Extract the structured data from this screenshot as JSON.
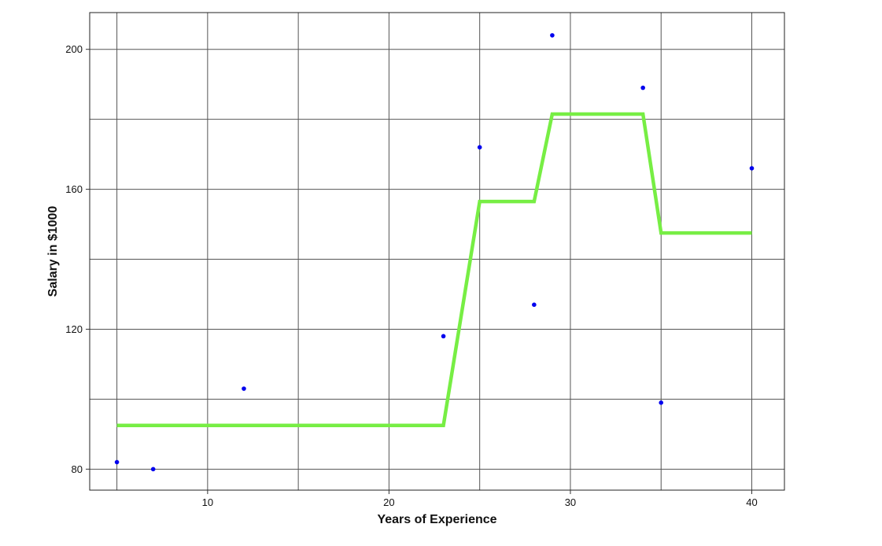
{
  "chart_data": {
    "type": "scatter",
    "title": "",
    "xlabel": "Years of Experience",
    "ylabel": "Salary in $1000",
    "xlim": [
      3.5,
      41.8
    ],
    "ylim": [
      74,
      210.5
    ],
    "x_ticks": [
      10,
      20,
      30,
      40
    ],
    "x_minor_gridlines": [
      5,
      15,
      25,
      35
    ],
    "y_ticks": [
      80,
      120,
      160,
      200
    ],
    "y_minor_gridlines": [
      100,
      140,
      180
    ],
    "grid": true,
    "legend": "none",
    "colors": {
      "points": "#0000ee",
      "fit_line": "#77ee44",
      "grid": "#555555"
    },
    "series": [
      {
        "type": "scatter",
        "x": [
          5,
          7,
          12,
          23,
          25,
          28,
          29,
          34,
          35,
          40
        ],
        "y": [
          82,
          80,
          103,
          118,
          172,
          127,
          204,
          189,
          99,
          166
        ]
      },
      {
        "type": "line",
        "x": [
          5,
          23,
          25,
          28,
          29,
          34,
          35,
          40
        ],
        "y": [
          92.5,
          92.5,
          156.5,
          156.5,
          181.5,
          181.5,
          147.5,
          147.5
        ]
      }
    ]
  }
}
